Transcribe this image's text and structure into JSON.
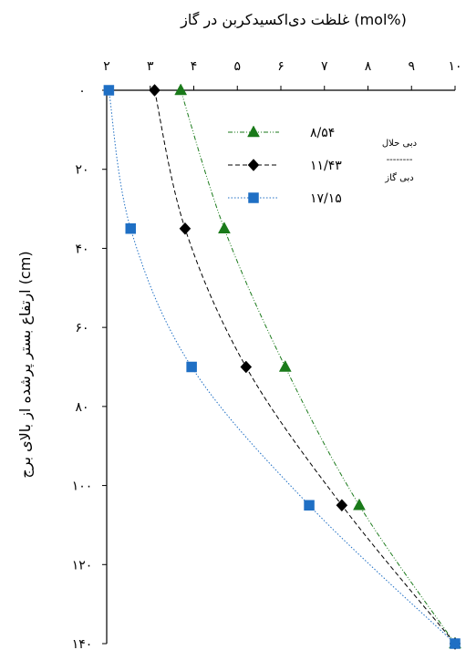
{
  "chart_data": {
    "type": "line",
    "xlabel": "غلظت دی‌اکسیدکربن در گاز (mol%)",
    "ylabel": "ارتفاع بستر پرشده از بالای برج (cm)",
    "xlim": [
      2,
      10
    ],
    "ylim": [
      0,
      140
    ],
    "y_inverted": true,
    "x_axis_position": "top",
    "x_ticks": [
      2,
      3,
      4,
      5,
      6,
      7,
      8,
      9,
      10
    ],
    "y_ticks": [
      0,
      20,
      40,
      60,
      80,
      100,
      120,
      140
    ],
    "x_tick_labels": [
      "۲",
      "۳",
      "۴",
      "۵",
      "۶",
      "۷",
      "۸",
      "۹",
      "۱۰"
    ],
    "y_tick_labels": [
      "۰",
      "۲۰",
      "۴۰",
      "۶۰",
      "۸۰",
      "۱۰۰",
      "۱۲۰",
      "۱۴۰"
    ],
    "grid": false,
    "legend_position": "top-right",
    "legend_header_top": "دبی حلال",
    "legend_header_divider": "--------",
    "legend_header_bottom": "دبی گاز",
    "series": [
      {
        "name": "۸/۵۴",
        "color": "#1a7a1a",
        "marker": "triangle",
        "line": "dash-dot-dot",
        "y": [
          0,
          35,
          70,
          105,
          140
        ],
        "x": [
          3.7,
          4.7,
          6.1,
          7.8,
          10.0
        ]
      },
      {
        "name": "۱۱/۴۳",
        "color": "#000000",
        "marker": "diamond",
        "line": "dash",
        "y": [
          0,
          35,
          70,
          105,
          140
        ],
        "x": [
          3.1,
          3.8,
          5.2,
          7.4,
          10.0
        ]
      },
      {
        "name": "۱۷/۱۵",
        "color": "#1f6fc4",
        "marker": "square",
        "line": "dot",
        "y": [
          0,
          35,
          70,
          105,
          140
        ],
        "x": [
          2.05,
          2.55,
          3.95,
          6.65,
          10.0
        ]
      }
    ]
  }
}
